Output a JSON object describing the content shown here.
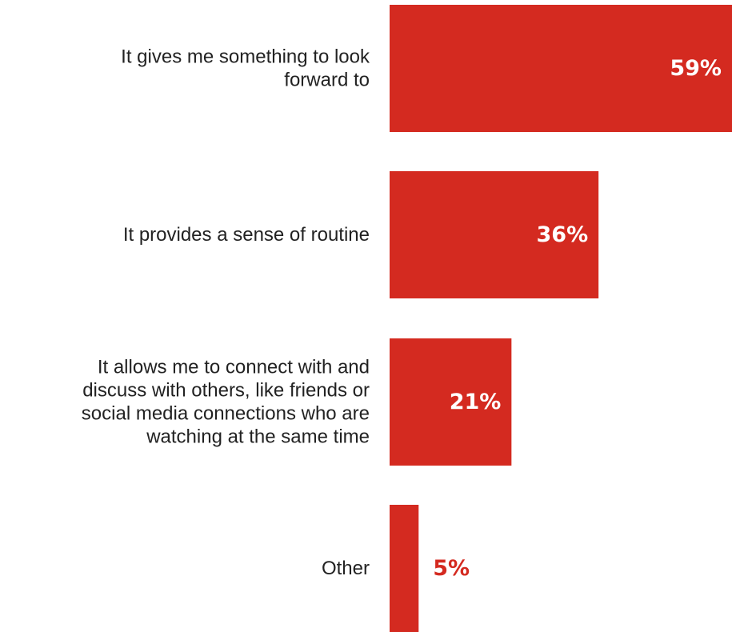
{
  "chart_data": {
    "type": "bar",
    "orientation": "horizontal",
    "categories": [
      "It gives me something to look forward to",
      "It provides a sense of routine",
      "It allows me to connect with and discuss with others, like friends or social media connections who are watching at the same time",
      "Other"
    ],
    "category_label_lines": [
      [
        "It gives me something to look",
        "forward to"
      ],
      [
        "It provides a sense of routine"
      ],
      [
        "It allows me to connect with and",
        "discuss with others, like friends or",
        "social media connections who are",
        "watching at the same time"
      ],
      [
        "Other"
      ]
    ],
    "values": [
      59,
      36,
      21,
      5
    ],
    "value_labels": [
      "59%",
      "36%",
      "21%",
      "5%"
    ],
    "unit": "%",
    "title": "",
    "xlabel": "",
    "ylabel": "",
    "xlim": [
      0,
      59
    ],
    "grid": false,
    "legend": "none"
  },
  "colors": {
    "bar": "#D42A20",
    "label_inside": "#FFFFFF",
    "label_outside": "#D42A20",
    "category_text": "#222222"
  }
}
